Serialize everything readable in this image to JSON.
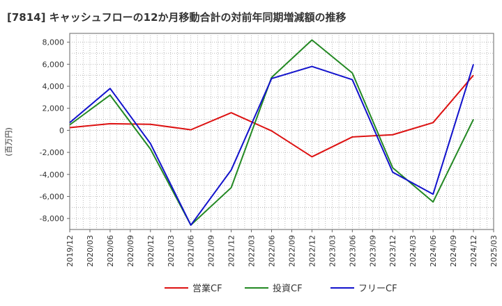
{
  "chart_data": {
    "type": "line",
    "title": "[7814]  キャッシュフローの12か月移動合計の対前年同期増減額の推移",
    "ylabel": "(百万円)",
    "xlabel": "",
    "ylim": [
      -9000,
      8800
    ],
    "yticks": [
      8000,
      6000,
      4000,
      2000,
      0,
      -2000,
      -4000,
      -6000,
      -8000
    ],
    "ytick_labels": [
      "8,000",
      "6,000",
      "4,000",
      "2,000",
      "0",
      "-2,000",
      "-4,000",
      "-6,000",
      "-8,000"
    ],
    "x_ticks": [
      "2019/12",
      "2020/03",
      "2020/06",
      "2020/09",
      "2020/12",
      "2021/03",
      "2021/06",
      "2021/09",
      "2021/12",
      "2022/03",
      "2022/06",
      "2022/09",
      "2022/12",
      "2023/03",
      "2023/06",
      "2023/09",
      "2023/12",
      "2024/03",
      "2024/06",
      "2024/09",
      "2024/12",
      "2025/03"
    ],
    "grid": true,
    "legend_position": "bottom",
    "series": [
      {
        "name": "営業CF",
        "color": "#dd1111",
        "x": [
          "2019/12",
          "2020/06",
          "2020/12",
          "2021/06",
          "2021/12",
          "2022/06",
          "2022/12",
          "2023/06",
          "2023/12",
          "2024/06",
          "2024/12"
        ],
        "values": [
          250,
          600,
          550,
          50,
          1600,
          -50,
          -2400,
          -600,
          -400,
          700,
          5000
        ]
      },
      {
        "name": "投資CF",
        "color": "#228822",
        "x": [
          "2019/12",
          "2020/06",
          "2020/12",
          "2021/06",
          "2021/12",
          "2022/06",
          "2022/12",
          "2023/06",
          "2023/12",
          "2024/06",
          "2024/12"
        ],
        "values": [
          500,
          3200,
          -1700,
          -8600,
          -5200,
          4800,
          8200,
          5200,
          -3400,
          -6500,
          1000
        ]
      },
      {
        "name": "フリーCF",
        "color": "#1111cc",
        "x": [
          "2019/12",
          "2020/06",
          "2020/12",
          "2021/06",
          "2021/12",
          "2022/06",
          "2022/12",
          "2023/06",
          "2023/12",
          "2024/06",
          "2024/12"
        ],
        "values": [
          700,
          3800,
          -1200,
          -8600,
          -3600,
          4700,
          5800,
          4600,
          -3800,
          -5800,
          6000
        ]
      }
    ]
  }
}
